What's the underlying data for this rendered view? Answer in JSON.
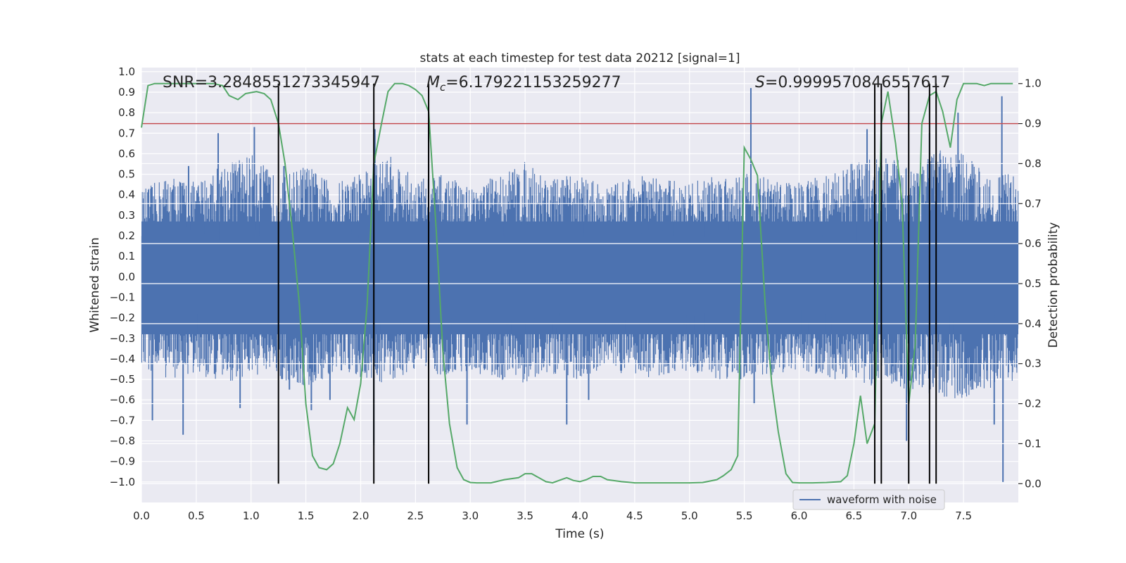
{
  "chart_data": {
    "type": "line",
    "title": "stats at each timestep for test data 20212 [signal=1]",
    "xlabel": "Time (s)",
    "ylabel": "Whitened strain",
    "y2label": "Detection probability",
    "xlim": [
      0,
      8
    ],
    "ylim": [
      -1.1,
      1.02
    ],
    "y2lim": [
      -0.047,
      1.04
    ],
    "x_ticks": [
      0.0,
      0.5,
      1.0,
      1.5,
      2.0,
      2.5,
      3.0,
      3.5,
      4.0,
      4.5,
      5.0,
      5.5,
      6.0,
      6.5,
      7.0,
      7.5
    ],
    "x_tick_labels": [
      "0.0",
      "0.5",
      "1.0",
      "1.5",
      "2.0",
      "2.5",
      "3.0",
      "3.5",
      "4.0",
      "4.5",
      "5.0",
      "5.5",
      "6.0",
      "6.5",
      "7.0",
      "7.5"
    ],
    "y_ticks": [
      1.0,
      0.9,
      0.8,
      0.7,
      0.6,
      0.5,
      0.4,
      0.3,
      0.2,
      0.1,
      0.0,
      -0.1,
      -0.2,
      -0.3,
      -0.4,
      -0.5,
      -0.6,
      -0.7,
      -0.8,
      -0.9,
      -1.0
    ],
    "y_tick_labels": [
      "1.0",
      "0.9",
      "0.8",
      "0.7",
      "0.6",
      "0.5",
      "0.4",
      "0.3",
      "0.2",
      "0.1",
      "0.0",
      "−0.1",
      "−0.2",
      "−0.3",
      "−0.4",
      "−0.5",
      "−0.6",
      "−0.7",
      "−0.8",
      "−0.9",
      "−1.0"
    ],
    "y2_ticks": [
      1.0,
      0.9,
      0.8,
      0.7,
      0.6,
      0.5,
      0.4,
      0.3,
      0.2,
      0.1,
      0.0
    ],
    "y2_tick_labels": [
      "1.0",
      "0.9",
      "0.8",
      "0.7",
      "0.6",
      "0.5",
      "0.4",
      "0.3",
      "0.2",
      "0.1",
      "0.0"
    ],
    "annotations": {
      "snr": "SNR=3.2848551273345947",
      "mc_symbol": "M",
      "mc_subscript": "c",
      "mc_value": "=6.179221153259277",
      "s_symbol": "S",
      "s_value": "=0.9999570846557617"
    },
    "threshold": 0.9,
    "detection_times": [
      1.25,
      2.12,
      2.62,
      6.69,
      6.75,
      7.0,
      7.19,
      7.25
    ],
    "waveform": {
      "name": "waveform with noise",
      "envelope_x": [
        0.0,
        0.25,
        0.5,
        0.75,
        1.0,
        1.25,
        1.5,
        1.75,
        2.0,
        2.25,
        2.5,
        2.75,
        3.0,
        3.25,
        3.5,
        3.75,
        4.0,
        4.25,
        4.5,
        4.75,
        5.0,
        5.25,
        5.5,
        5.75,
        6.0,
        6.25,
        6.5,
        6.75,
        7.0,
        7.25,
        7.5,
        7.75,
        8.0
      ],
      "envelope_upper": [
        0.42,
        0.5,
        0.46,
        0.56,
        0.6,
        0.48,
        0.55,
        0.45,
        0.52,
        0.6,
        0.48,
        0.5,
        0.44,
        0.5,
        0.56,
        0.48,
        0.5,
        0.44,
        0.5,
        0.48,
        0.46,
        0.5,
        0.52,
        0.48,
        0.46,
        0.5,
        0.56,
        0.6,
        0.55,
        0.62,
        0.6,
        0.5,
        0.5
      ],
      "envelope_lower": [
        -0.45,
        -0.5,
        -0.48,
        -0.52,
        -0.48,
        -0.5,
        -0.55,
        -0.48,
        -0.5,
        -0.52,
        -0.45,
        -0.48,
        -0.46,
        -0.5,
        -0.52,
        -0.48,
        -0.5,
        -0.44,
        -0.5,
        -0.48,
        -0.46,
        -0.5,
        -0.5,
        -0.48,
        -0.46,
        -0.5,
        -0.5,
        -0.55,
        -0.55,
        -0.58,
        -0.6,
        -0.55,
        -0.5
      ],
      "spike_x": [
        0.1,
        0.38,
        0.43,
        0.7,
        0.9,
        1.03,
        1.05,
        1.3,
        1.35,
        1.55,
        1.72,
        2.12,
        2.13,
        2.62,
        2.97,
        3.88,
        4.08,
        5.56,
        5.59,
        6.62,
        6.75,
        6.98,
        7.19,
        7.45,
        7.78,
        7.85,
        7.86
      ],
      "spike_y": [
        -0.7,
        -0.77,
        0.54,
        0.7,
        -0.64,
        0.73,
        0.5,
        0.54,
        -0.55,
        -0.65,
        -0.6,
        -0.82,
        0.72,
        0.75,
        -0.72,
        -0.72,
        -0.6,
        0.92,
        -0.62,
        0.72,
        0.85,
        -0.8,
        0.7,
        0.8,
        -0.72,
        0.88,
        -1.0
      ]
    },
    "probability": {
      "x": [
        0.0,
        0.06,
        0.12,
        0.25,
        0.5,
        0.66,
        0.74,
        0.8,
        0.88,
        0.95,
        1.05,
        1.12,
        1.18,
        1.25,
        1.31,
        1.37,
        1.44,
        1.5,
        1.56,
        1.62,
        1.69,
        1.75,
        1.81,
        1.88,
        1.94,
        2.0,
        2.06,
        2.12,
        2.19,
        2.25,
        2.31,
        2.38,
        2.44,
        2.5,
        2.56,
        2.62,
        2.69,
        2.75,
        2.81,
        2.88,
        2.94,
        3.0,
        3.06,
        3.19,
        3.31,
        3.44,
        3.5,
        3.56,
        3.69,
        3.75,
        3.81,
        3.88,
        3.94,
        4.0,
        4.06,
        4.12,
        4.19,
        4.25,
        4.38,
        4.5,
        4.62,
        4.75,
        4.88,
        5.0,
        5.12,
        5.25,
        5.31,
        5.38,
        5.44,
        5.5,
        5.56,
        5.62,
        5.69,
        5.75,
        5.81,
        5.88,
        5.94,
        6.0,
        6.06,
        6.12,
        6.25,
        6.38,
        6.44,
        6.5,
        6.56,
        6.62,
        6.69,
        6.75,
        6.81,
        6.88,
        6.94,
        7.0,
        7.06,
        7.12,
        7.19,
        7.25,
        7.31,
        7.38,
        7.44,
        7.5,
        7.56,
        7.62,
        7.69,
        7.75,
        7.81,
        7.88,
        7.95
      ],
      "y": [
        0.89,
        0.995,
        1.0,
        1.0,
        1.0,
        1.0,
        0.995,
        0.97,
        0.96,
        0.975,
        0.98,
        0.975,
        0.96,
        0.9,
        0.8,
        0.65,
        0.45,
        0.2,
        0.07,
        0.04,
        0.035,
        0.05,
        0.1,
        0.19,
        0.16,
        0.25,
        0.45,
        0.8,
        0.9,
        0.98,
        1.0,
        1.0,
        0.995,
        0.985,
        0.97,
        0.93,
        0.63,
        0.33,
        0.15,
        0.04,
        0.01,
        0.003,
        0.002,
        0.002,
        0.01,
        0.015,
        0.025,
        0.025,
        0.005,
        0.002,
        0.008,
        0.015,
        0.008,
        0.005,
        0.01,
        0.018,
        0.018,
        0.01,
        0.005,
        0.002,
        0.002,
        0.002,
        0.002,
        0.002,
        0.003,
        0.01,
        0.02,
        0.035,
        0.07,
        0.84,
        0.81,
        0.77,
        0.45,
        0.25,
        0.13,
        0.025,
        0.003,
        0.002,
        0.002,
        0.002,
        0.003,
        0.005,
        0.02,
        0.1,
        0.22,
        0.1,
        0.15,
        0.9,
        0.98,
        0.85,
        0.7,
        0.2,
        0.35,
        0.9,
        0.97,
        0.98,
        0.93,
        0.84,
        0.96,
        1.0,
        1.0,
        1.0,
        0.995,
        1.0,
        1.0,
        1.0,
        1.0
      ]
    },
    "legend": {
      "label": "waveform with noise",
      "placement": "lower-right"
    },
    "grid": true,
    "colors": {
      "background": "#eaeaf2",
      "grid": "#ffffff",
      "waveform": "#4c72b0",
      "probability": "#55a868",
      "threshold": "#c44e52",
      "detection_lines": "#000000"
    }
  }
}
